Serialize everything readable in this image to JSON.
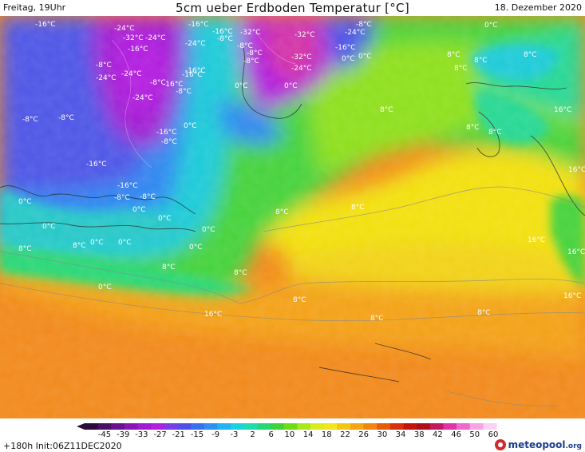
{
  "header": {
    "left": "Freitag, 19Uhr",
    "title": "5cm ueber Erdboden Temperatur [°C]",
    "right": "18. Dezember 2020"
  },
  "map": {
    "labels": [
      {
        "text": "-16°C",
        "temp": -16
      },
      {
        "text": "-24°C",
        "temp": -24
      },
      {
        "text": "-16°C",
        "temp": -16
      },
      {
        "text": "-32°C",
        "temp": -32
      },
      {
        "text": "-24°C",
        "temp": -24
      },
      {
        "text": "-24°C",
        "temp": -24
      },
      {
        "text": "-16°C",
        "temp": -16
      },
      {
        "text": "-8°C",
        "temp": -8
      },
      {
        "text": "-16°C",
        "temp": -16
      },
      {
        "text": "-32°C",
        "temp": -32
      },
      {
        "text": "-8°C",
        "temp": -8
      },
      {
        "text": "-24°C",
        "temp": -24
      },
      {
        "text": "-8°C",
        "temp": -8
      },
      {
        "text": "-16°C",
        "temp": -16
      },
      {
        "text": "-32°C",
        "temp": -32
      },
      {
        "text": "-24°C",
        "temp": -24
      },
      {
        "text": "-8°C",
        "temp": -8
      },
      {
        "text": "-16°C",
        "temp": -16
      },
      {
        "text": "-32°C",
        "temp": -32
      },
      {
        "text": "0°C",
        "temp": 0
      },
      {
        "text": "0°C",
        "temp": 0
      },
      {
        "text": "-8°C",
        "temp": -8
      },
      {
        "text": "0°C",
        "temp": 0
      },
      {
        "text": "8°C",
        "temp": 8
      },
      {
        "text": "8°C",
        "temp": 8
      },
      {
        "text": "-8°C",
        "temp": -8
      },
      {
        "text": "-24°C",
        "temp": -24
      },
      {
        "text": "-16°C",
        "temp": -16
      },
      {
        "text": "-8°C",
        "temp": -8
      },
      {
        "text": "-8°C",
        "temp": -8
      },
      {
        "text": "-24°C",
        "temp": -24
      },
      {
        "text": "0°C",
        "temp": 0
      },
      {
        "text": "-24°C",
        "temp": -24
      },
      {
        "text": "0°C",
        "temp": 0
      },
      {
        "text": "-16°C",
        "temp": -16
      },
      {
        "text": "8°C",
        "temp": 8
      },
      {
        "text": "-8°C",
        "temp": -8
      },
      {
        "text": "-8°C",
        "temp": -8
      },
      {
        "text": "-16°C",
        "temp": -16
      },
      {
        "text": "0°C",
        "temp": 0
      },
      {
        "text": "-8°C",
        "temp": -8
      },
      {
        "text": "8°C",
        "temp": 8
      },
      {
        "text": "8°C",
        "temp": 8
      },
      {
        "text": "8°C",
        "temp": 8
      },
      {
        "text": "8°C",
        "temp": 8
      },
      {
        "text": "-16°C",
        "temp": -16
      },
      {
        "text": "-16°C",
        "temp": -16
      },
      {
        "text": "-8°C",
        "temp": -8
      },
      {
        "text": "-8°C",
        "temp": -8
      },
      {
        "text": "0°C",
        "temp": 0
      },
      {
        "text": "0°C",
        "temp": 0
      },
      {
        "text": "8°C",
        "temp": 8
      },
      {
        "text": "8°C",
        "temp": 8
      },
      {
        "text": "0°C",
        "temp": 0
      },
      {
        "text": "0°C",
        "temp": 0
      },
      {
        "text": "0°C",
        "temp": 0
      },
      {
        "text": "8°C",
        "temp": 8
      },
      {
        "text": "0°C",
        "temp": 0
      },
      {
        "text": "0°C",
        "temp": 0
      },
      {
        "text": "0°C",
        "temp": 0
      },
      {
        "text": "8°C",
        "temp": 8
      },
      {
        "text": "8°C",
        "temp": 8
      },
      {
        "text": "8°C",
        "temp": 8
      },
      {
        "text": "0°C",
        "temp": 0
      },
      {
        "text": "8°C",
        "temp": 8
      },
      {
        "text": "8°C",
        "temp": 8
      },
      {
        "text": "8°C",
        "temp": 8
      },
      {
        "text": "16°C",
        "temp": 16
      },
      {
        "text": "16°C",
        "temp": 16
      },
      {
        "text": "16°C",
        "temp": 16
      },
      {
        "text": "16°C",
        "temp": 16
      },
      {
        "text": "16°C",
        "temp": 16
      },
      {
        "text": "16°C",
        "temp": 16
      }
    ]
  },
  "legend": {
    "ticks": [
      "-45",
      "-39",
      "-33",
      "-27",
      "-21",
      "-15",
      "-9",
      "-3",
      "2",
      "6",
      "10",
      "14",
      "18",
      "22",
      "26",
      "30",
      "34",
      "38",
      "42",
      "46",
      "50",
      "60"
    ],
    "colors": [
      "#2d0b3c",
      "#4b0f63",
      "#6a1390",
      "#8a16b8",
      "#a21ad4",
      "#b41ee0",
      "#7a3ce6",
      "#4e4fe8",
      "#3a6fef",
      "#2f8ff2",
      "#22b3f2",
      "#19d2e0",
      "#20dcaf",
      "#27d776",
      "#3fd23c",
      "#6fdc16",
      "#a7e81a",
      "#d8ee1c",
      "#f3e51e",
      "#f6c514",
      "#f6a512",
      "#f0850f",
      "#e65a0c",
      "#d8310c",
      "#c4140e",
      "#ad0e1a",
      "#c31a60",
      "#df36a6",
      "#ee6ad0",
      "#f6a4e6",
      "#fbd2f2"
    ]
  },
  "footer": {
    "left": "+180h  Init:06Z11DEC2020",
    "brand": "meteopool",
    "brand_tld": ".org"
  }
}
